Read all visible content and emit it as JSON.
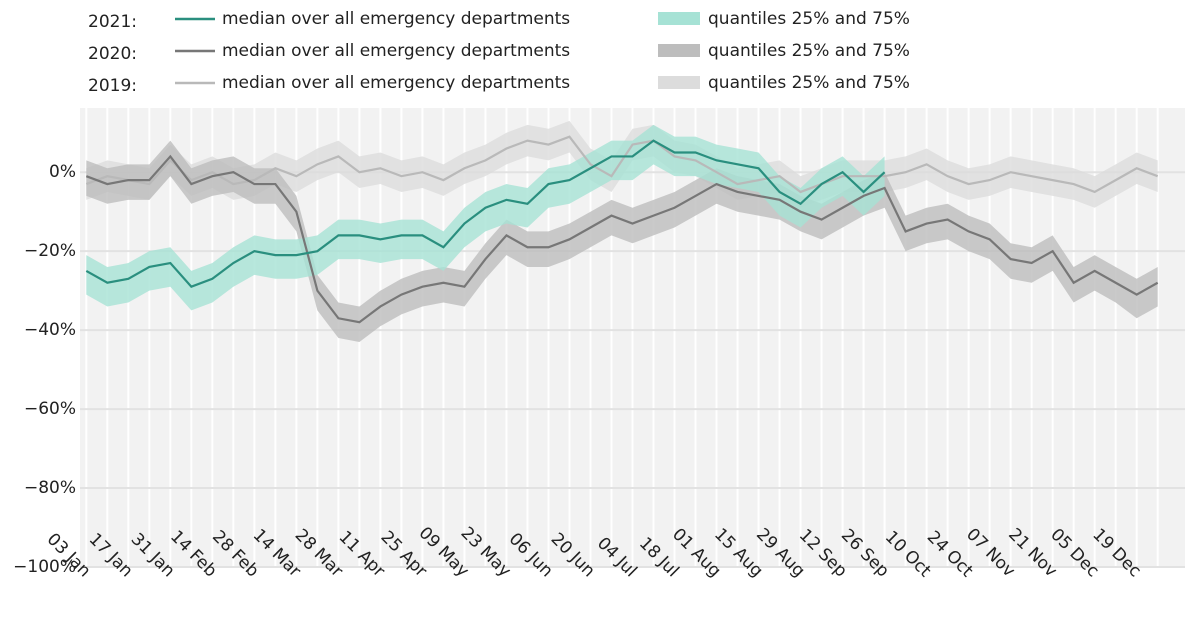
{
  "chart_data": {
    "type": "band-line",
    "categories": [
      "03 Jan",
      null,
      "17 Jan",
      null,
      "31 Jan",
      null,
      "14 Feb",
      null,
      "28 Feb",
      null,
      "14 Mar",
      null,
      "28 Mar",
      null,
      "11 Apr",
      null,
      "25 Apr",
      null,
      "09 May",
      null,
      "23 May",
      null,
      "06 Jun",
      null,
      "20 Jun",
      null,
      "04 Jul",
      null,
      "18 Jul",
      null,
      "01 Aug",
      null,
      "15 Aug",
      null,
      "29 Aug",
      null,
      "12 Sep",
      null,
      "26 Sep",
      null,
      "10 Oct",
      null,
      "24 Oct",
      null,
      "07 Nov",
      null,
      "21 Nov",
      null,
      "05 Dec",
      null,
      "19 Dec",
      null
    ],
    "ylim": [
      -100,
      15
    ],
    "yticks": [
      {
        "value": 0,
        "label": "0%"
      },
      {
        "value": -20,
        "label": "−20%"
      },
      {
        "value": -40,
        "label": "−40%"
      },
      {
        "value": -60,
        "label": "−60%"
      },
      {
        "value": -80,
        "label": "−80%"
      },
      {
        "value": -100,
        "label": "−100%"
      }
    ],
    "groups": [
      {
        "label": "2019:",
        "line_name": "median over all emergency departments",
        "band_name": "quantiles 25% and 75%",
        "color": "#b9b9b9",
        "band_color": "#dcdcdc",
        "median": [
          -3,
          -1,
          -2,
          -3,
          3,
          -2,
          0,
          -3,
          -2,
          1,
          -1,
          2,
          4,
          0,
          1,
          -1,
          0,
          -2,
          1,
          3,
          6,
          8,
          7,
          9,
          2,
          -1,
          7,
          8,
          4,
          3,
          0,
          -3,
          -2,
          -1,
          -5,
          -3,
          -1,
          -1,
          -1,
          0,
          2,
          -1,
          -3,
          -2,
          0,
          -1,
          -2,
          -3,
          -5,
          -2,
          1,
          -1
        ],
        "q25": [
          -7,
          -5,
          -6,
          -7,
          -1,
          -6,
          -4,
          -7,
          -6,
          -3,
          -5,
          -2,
          0,
          -4,
          -3,
          -5,
          -4,
          -6,
          -3,
          -1,
          2,
          4,
          3,
          5,
          -2,
          -5,
          3,
          4,
          0,
          -1,
          -4,
          -7,
          -6,
          -5,
          -9,
          -7,
          -5,
          -5,
          -5,
          -4,
          -2,
          -5,
          -7,
          -6,
          -4,
          -5,
          -6,
          -7,
          -9,
          -6,
          -3,
          -5
        ],
        "q75": [
          1,
          3,
          2,
          1,
          7,
          2,
          4,
          1,
          2,
          5,
          3,
          6,
          8,
          4,
          5,
          3,
          4,
          2,
          5,
          7,
          10,
          12,
          11,
          13,
          6,
          3,
          11,
          12,
          8,
          7,
          4,
          1,
          2,
          3,
          -1,
          1,
          3,
          3,
          3,
          4,
          6,
          3,
          1,
          2,
          4,
          3,
          2,
          1,
          -1,
          2,
          5,
          3
        ]
      },
      {
        "label": "2020:",
        "line_name": "median over all emergency departments",
        "band_name": "quantiles 25% and 75%",
        "color": "#777777",
        "band_color": "#bdbdbd",
        "median": [
          -1,
          -3,
          -2,
          -2,
          4,
          -3,
          -1,
          0,
          -3,
          -3,
          -10,
          -30,
          -37,
          -38,
          -34,
          -31,
          -29,
          -28,
          -29,
          -22,
          -16,
          -19,
          -19,
          -17,
          -14,
          -11,
          -13,
          -11,
          -9,
          -6,
          -3,
          -5,
          -6,
          -7,
          -10,
          -12,
          -9,
          -6,
          -4,
          -15,
          -13,
          -12,
          -15,
          -17,
          -22,
          -23,
          -20,
          -28,
          -25,
          -28,
          -31,
          -28
        ],
        "q25": [
          -6,
          -8,
          -7,
          -7,
          -1,
          -8,
          -6,
          -5,
          -8,
          -8,
          -15,
          -35,
          -42,
          -43,
          -39,
          -36,
          -34,
          -33,
          -34,
          -27,
          -21,
          -24,
          -24,
          -22,
          -19,
          -16,
          -18,
          -16,
          -14,
          -11,
          -8,
          -10,
          -11,
          -12,
          -15,
          -17,
          -14,
          -11,
          -9,
          -20,
          -18,
          -17,
          -20,
          -22,
          -27,
          -28,
          -25,
          -33,
          -30,
          -33,
          -37,
          -34
        ],
        "q75": [
          3,
          1,
          2,
          2,
          8,
          1,
          3,
          4,
          1,
          1,
          -6,
          -26,
          -33,
          -34,
          -30,
          -27,
          -25,
          -24,
          -25,
          -18,
          -12,
          -15,
          -15,
          -13,
          -10,
          -7,
          -9,
          -7,
          -5,
          -2,
          1,
          -1,
          -2,
          -3,
          -6,
          -8,
          -5,
          -2,
          0,
          -11,
          -9,
          -8,
          -11,
          -13,
          -18,
          -19,
          -16,
          -24,
          -21,
          -24,
          -27,
          -24
        ]
      },
      {
        "label": "2021:",
        "line_name": "median over all emergency departments",
        "band_name": "quantiles 25% and 75%",
        "color": "#2a8f7f",
        "band_color": "#a6e2d5",
        "median": [
          -25,
          -28,
          -27,
          -24,
          -23,
          -29,
          -27,
          -23,
          -20,
          -21,
          -21,
          -20,
          -16,
          -16,
          -17,
          -16,
          -16,
          -19,
          -13,
          -9,
          -7,
          -8,
          -3,
          -2,
          1,
          4,
          4,
          8,
          5,
          5,
          3,
          2,
          1,
          -5,
          -8,
          -3,
          0,
          -5,
          0,
          null,
          null,
          null,
          null,
          null,
          null,
          null,
          null,
          null,
          null,
          null,
          null,
          null
        ],
        "q25": [
          -31,
          -34,
          -33,
          -30,
          -29,
          -35,
          -33,
          -29,
          -26,
          -27,
          -27,
          -26,
          -22,
          -22,
          -23,
          -22,
          -22,
          -25,
          -19,
          -15,
          -13,
          -14,
          -9,
          -8,
          -5,
          -2,
          -2,
          2,
          -1,
          -1,
          -3,
          -4,
          -5,
          -11,
          -14,
          -9,
          -6,
          -11,
          -6,
          null,
          null,
          null,
          null,
          null,
          null,
          null,
          null,
          null,
          null,
          null,
          null,
          null
        ],
        "q75": [
          -21,
          -24,
          -23,
          -20,
          -19,
          -25,
          -23,
          -19,
          -16,
          -17,
          -17,
          -16,
          -12,
          -12,
          -13,
          -12,
          -12,
          -15,
          -9,
          -5,
          -3,
          -4,
          1,
          2,
          5,
          8,
          8,
          12,
          9,
          9,
          7,
          6,
          5,
          -1,
          -4,
          1,
          4,
          -1,
          4,
          null,
          null,
          null,
          null,
          null,
          null,
          null,
          null,
          null,
          null,
          null,
          null,
          null
        ]
      }
    ]
  }
}
